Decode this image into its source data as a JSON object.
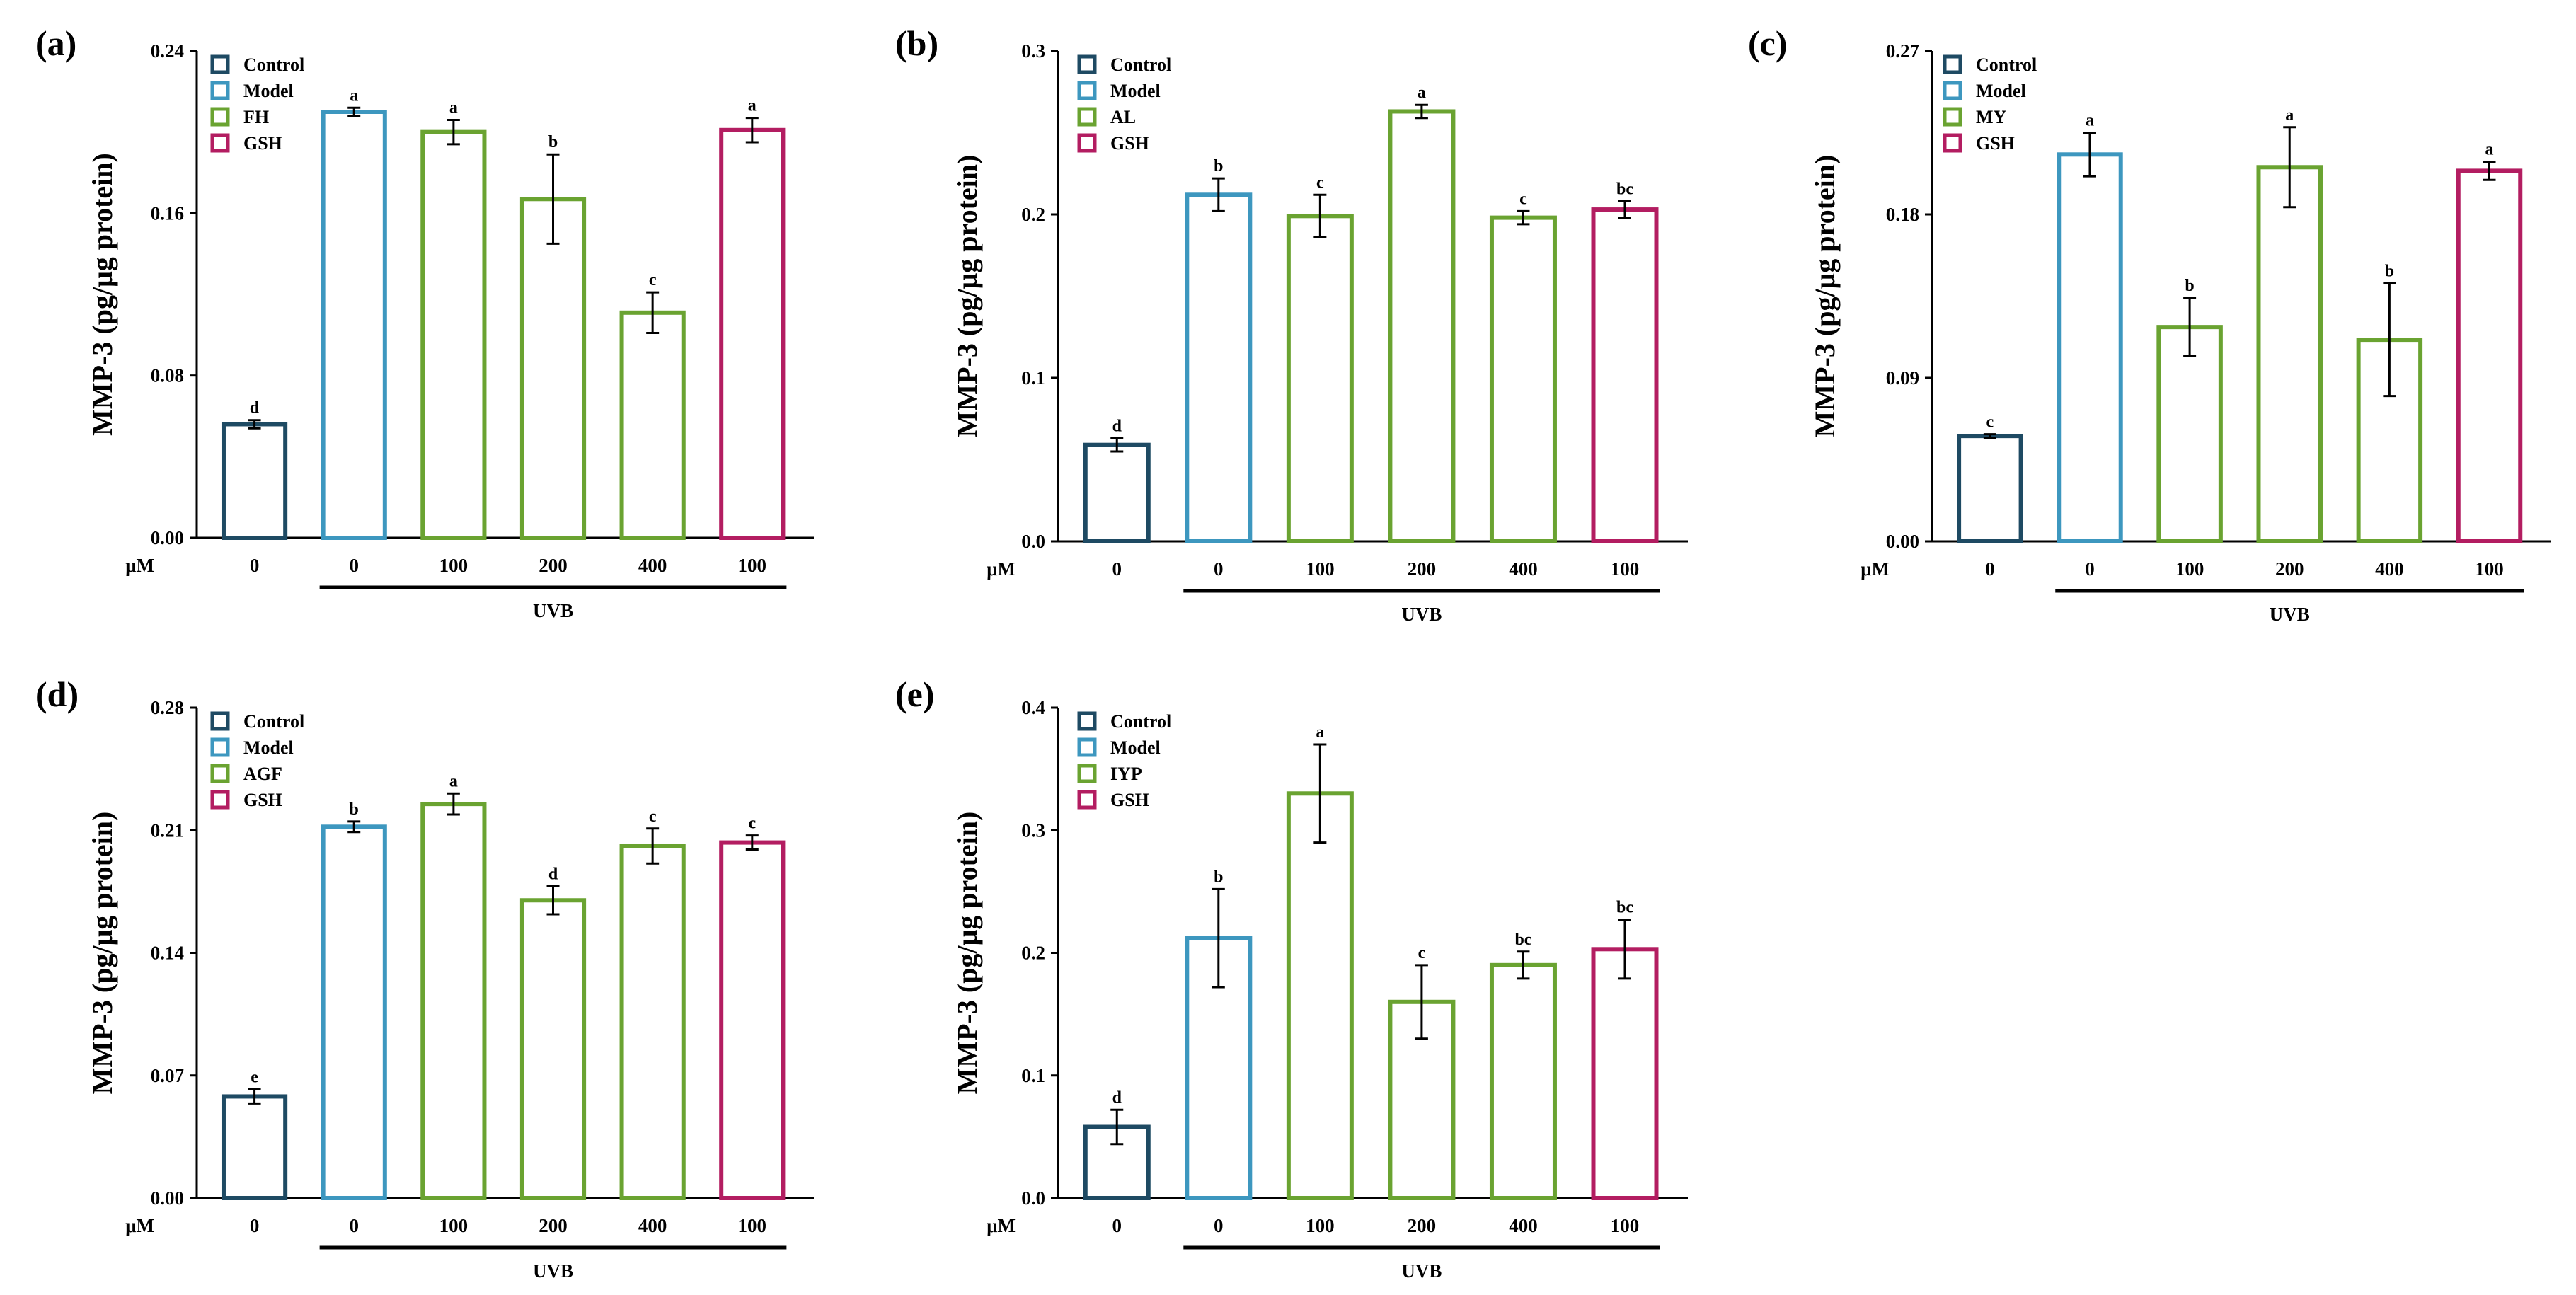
{
  "colors": {
    "Control": "#1e4a63",
    "Model": "#3d97bf",
    "Treatment": "#6aa331",
    "GSH": "#b31d61"
  },
  "chart_data": [
    {
      "type": "bar",
      "panel_label": "(a)",
      "ylabel": "MMP-3 (pg/μg protein)",
      "ylim": [
        0,
        0.24
      ],
      "yticks": [
        "0.00",
        "0.08",
        "0.16",
        "0.24"
      ],
      "x_unit": "μM",
      "categories": [
        "0",
        "0",
        "100",
        "200",
        "400",
        "100"
      ],
      "groups": [
        "Control",
        "Model",
        "Treatment",
        "Treatment",
        "Treatment",
        "GSH"
      ],
      "values": [
        0.056,
        0.21,
        0.2,
        0.167,
        0.111,
        0.201
      ],
      "errors": [
        0.002,
        0.002,
        0.006,
        0.022,
        0.01,
        0.006
      ],
      "significance": [
        "d",
        "a",
        "a",
        "b",
        "c",
        "a"
      ],
      "legend": [
        "Control",
        "Model",
        "FH",
        "GSH"
      ],
      "group_label": "UVB"
    },
    {
      "type": "bar",
      "panel_label": "(b)",
      "ylabel": "MMP-3 (pg/μg protein)",
      "ylim": [
        0,
        0.3
      ],
      "yticks": [
        "0.0",
        "0.1",
        "0.2",
        "0.3"
      ],
      "x_unit": "μM",
      "categories": [
        "0",
        "0",
        "100",
        "200",
        "400",
        "100"
      ],
      "groups": [
        "Control",
        "Model",
        "Treatment",
        "Treatment",
        "Treatment",
        "GSH"
      ],
      "values": [
        0.059,
        0.212,
        0.199,
        0.263,
        0.198,
        0.203
      ],
      "errors": [
        0.004,
        0.01,
        0.013,
        0.004,
        0.004,
        0.005
      ],
      "significance": [
        "d",
        "b",
        "c",
        "a",
        "c",
        "bc"
      ],
      "legend": [
        "Control",
        "Model",
        "AL",
        "GSH"
      ],
      "group_label": "UVB"
    },
    {
      "type": "bar",
      "panel_label": "(c)",
      "ylabel": "MMP-3 (pg/μg protein)",
      "ylim": [
        0,
        0.27
      ],
      "yticks": [
        "0.00",
        "0.09",
        "0.18",
        "0.27"
      ],
      "x_unit": "μM",
      "categories": [
        "0",
        "0",
        "100",
        "200",
        "400",
        "100"
      ],
      "groups": [
        "Control",
        "Model",
        "Treatment",
        "Treatment",
        "Treatment",
        "GSH"
      ],
      "values": [
        0.058,
        0.213,
        0.118,
        0.206,
        0.111,
        0.204
      ],
      "errors": [
        0.001,
        0.012,
        0.016,
        0.022,
        0.031,
        0.005
      ],
      "significance": [
        "c",
        "a",
        "b",
        "a",
        "b",
        "a"
      ],
      "legend": [
        "Control",
        "Model",
        "MY",
        "GSH"
      ],
      "group_label": "UVB"
    },
    {
      "type": "bar",
      "panel_label": "(d)",
      "ylabel": "MMP-3 (pg/μg protein)",
      "ylim": [
        0,
        0.28
      ],
      "yticks": [
        "0.00",
        "0.07",
        "0.14",
        "0.21",
        "0.28"
      ],
      "x_unit": "μM",
      "categories": [
        "0",
        "0",
        "100",
        "200",
        "400",
        "100"
      ],
      "groups": [
        "Control",
        "Model",
        "Treatment",
        "Treatment",
        "Treatment",
        "GSH"
      ],
      "values": [
        0.058,
        0.212,
        0.225,
        0.17,
        0.201,
        0.203
      ],
      "errors": [
        0.004,
        0.003,
        0.006,
        0.008,
        0.01,
        0.004
      ],
      "significance": [
        "e",
        "b",
        "a",
        "d",
        "c",
        "c"
      ],
      "legend": [
        "Control",
        "Model",
        "AGF",
        "GSH"
      ],
      "group_label": "UVB"
    },
    {
      "type": "bar",
      "panel_label": "(e)",
      "ylabel": "MMP-3 (pg/μg protein)",
      "ylim": [
        0,
        0.4
      ],
      "yticks": [
        "0.0",
        "0.1",
        "0.2",
        "0.3",
        "0.4"
      ],
      "x_unit": "μM",
      "categories": [
        "0",
        "0",
        "100",
        "200",
        "400",
        "100"
      ],
      "groups": [
        "Control",
        "Model",
        "Treatment",
        "Treatment",
        "Treatment",
        "GSH"
      ],
      "values": [
        0.058,
        0.212,
        0.33,
        0.16,
        0.19,
        0.203
      ],
      "errors": [
        0.014,
        0.04,
        0.04,
        0.03,
        0.011,
        0.024
      ],
      "significance": [
        "d",
        "b",
        "a",
        "c",
        "bc",
        "bc"
      ],
      "legend": [
        "Control",
        "Model",
        "IYP",
        "GSH"
      ],
      "group_label": "UVB"
    }
  ]
}
